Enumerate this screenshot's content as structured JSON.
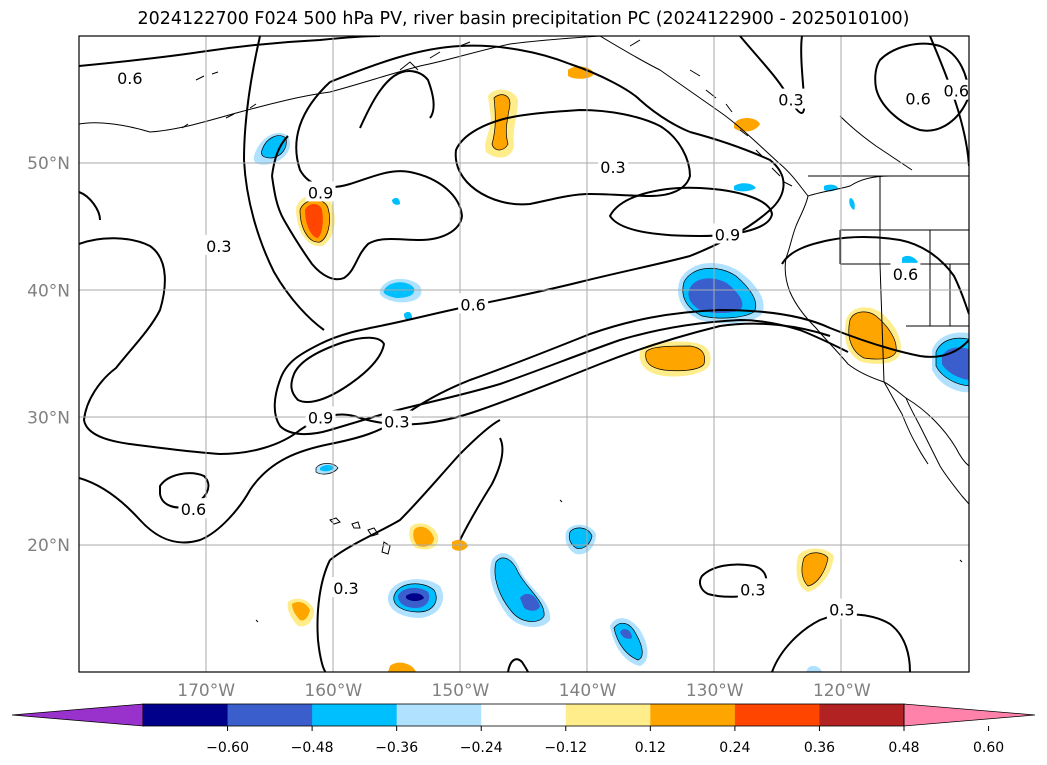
{
  "title": "2024122700 F024 500 hPa PV, river basin precipitation PC (2024122900 - 2025010100)",
  "map": {
    "lon_range": [
      -180,
      -110
    ],
    "lat_range": [
      10,
      60
    ],
    "lat_labels": [
      "50°N",
      "40°N",
      "30°N",
      "20°N"
    ],
    "lon_labels": [
      "170°W",
      "160°W",
      "150°W",
      "140°W",
      "130°W",
      "120°W"
    ],
    "contour_labels": [
      {
        "text": "0.6",
        "lon": -176,
        "lat": 56.7
      },
      {
        "text": "0.3",
        "lon": -169,
        "lat": 43.5
      },
      {
        "text": "0.9",
        "lon": -161,
        "lat": 47.7
      },
      {
        "text": "0.3",
        "lon": -138,
        "lat": 49.7
      },
      {
        "text": "0.3",
        "lon": -124,
        "lat": 55.0
      },
      {
        "text": "0.6",
        "lon": -114,
        "lat": 55.1
      },
      {
        "text": "0.6",
        "lon": -111,
        "lat": 55.7
      },
      {
        "text": "0.9",
        "lon": -129,
        "lat": 44.4
      },
      {
        "text": "0.6",
        "lon": -115,
        "lat": 41.3
      },
      {
        "text": "0.6",
        "lon": -149,
        "lat": 38.9
      },
      {
        "text": "0.9",
        "lon": -161,
        "lat": 30.0
      },
      {
        "text": "0.3",
        "lon": -155,
        "lat": 29.7
      },
      {
        "text": "0.6",
        "lon": -171,
        "lat": 22.8
      },
      {
        "text": "0.3",
        "lon": -159,
        "lat": 16.6
      },
      {
        "text": "0.3",
        "lon": -127,
        "lat": 16.5
      },
      {
        "text": "0.3",
        "lon": -120,
        "lat": 14.9
      }
    ]
  },
  "colorbar": {
    "tick_labels": [
      "−0.60",
      "−0.48",
      "−0.36",
      "−0.24",
      "−0.12",
      "0.12",
      "0.24",
      "0.36",
      "0.48",
      "0.60"
    ],
    "colors": [
      "#9932cc",
      "#00008b",
      "#3a5fcd",
      "#00bfff",
      "#b0e2ff",
      "#ffffff",
      "#ffec8b",
      "#ffa500",
      "#ff4500",
      "#b22222",
      "#ff82ab"
    ]
  },
  "colors": {
    "pv_contour": "#000000",
    "grid": "#aaaaaa",
    "axis_label": "#808080",
    "coast": "#000000"
  }
}
